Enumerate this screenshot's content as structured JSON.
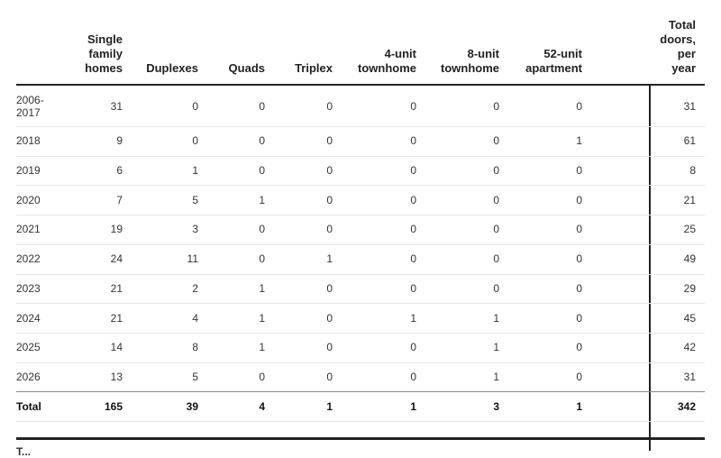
{
  "chart_data": {
    "type": "table",
    "columns": [
      "",
      "Single\nfamily\nhomes",
      "Duplexes",
      "Quads",
      "Triplex",
      "4-unit\ntownhome",
      "8-unit\ntownhome",
      "52-unit\napartment",
      "Total\ndoors,\nper\nyear"
    ],
    "rows": [
      {
        "label": "2006-\n2017",
        "values": [
          "31",
          "0",
          "0",
          "0",
          "0",
          "0",
          "0"
        ],
        "total": "31"
      },
      {
        "label": "2018",
        "values": [
          "9",
          "0",
          "0",
          "0",
          "0",
          "0",
          "1"
        ],
        "total": "61"
      },
      {
        "label": "2019",
        "values": [
          "6",
          "1",
          "0",
          "0",
          "0",
          "0",
          "0"
        ],
        "total": "8"
      },
      {
        "label": "2020",
        "values": [
          "7",
          "5",
          "1",
          "0",
          "0",
          "0",
          "0"
        ],
        "total": "21"
      },
      {
        "label": "2021",
        "values": [
          "19",
          "3",
          "0",
          "0",
          "0",
          "0",
          "0"
        ],
        "total": "25"
      },
      {
        "label": "2022",
        "values": [
          "24",
          "11",
          "0",
          "1",
          "0",
          "0",
          "0"
        ],
        "total": "49"
      },
      {
        "label": "2023",
        "values": [
          "21",
          "2",
          "1",
          "0",
          "0",
          "0",
          "0"
        ],
        "total": "29"
      },
      {
        "label": "2024",
        "values": [
          "21",
          "4",
          "1",
          "0",
          "1",
          "1",
          "0"
        ],
        "total": "45"
      },
      {
        "label": "2025",
        "values": [
          "14",
          "8",
          "1",
          "0",
          "0",
          "1",
          "0"
        ],
        "total": "42"
      },
      {
        "label": "2026",
        "values": [
          "13",
          "5",
          "0",
          "0",
          "0",
          "1",
          "0"
        ],
        "total": "31"
      }
    ],
    "total_row": {
      "label": "Total",
      "values": [
        "165",
        "39",
        "4",
        "1",
        "1",
        "3",
        "1"
      ],
      "total": "342"
    },
    "footer_fragment": "T..."
  },
  "colors": {
    "text": "#333333",
    "rule": "#222222",
    "row_divider": "#e5e5e5"
  }
}
